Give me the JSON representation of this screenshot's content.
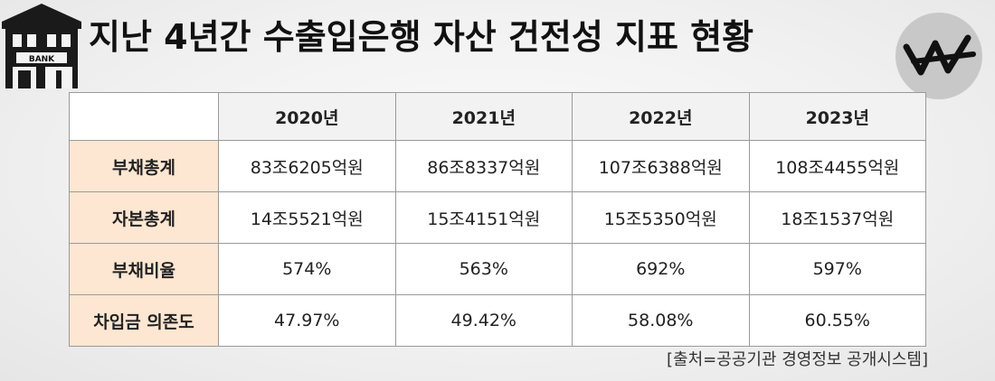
{
  "title": "지난 4년간 수출입은행 자산 건전성 지표 현황",
  "bank_icon": {
    "name": "bank-building-icon",
    "sign_text": "BANK"
  },
  "logo": {
    "name": "w-logo-icon",
    "color": "#111111",
    "circle_color": "#c8c8c8"
  },
  "table": {
    "columns": [
      "",
      "2020년",
      "2021년",
      "2022년",
      "2023년"
    ],
    "rows": [
      {
        "label": "부채총계",
        "values": [
          "83조6205억원",
          "86조8337억원",
          "107조6388억원",
          "108조4455억원"
        ]
      },
      {
        "label": "자본총계",
        "values": [
          "14조5521억원",
          "15조4151억원",
          "15조5350억원",
          "18조1537억원"
        ]
      },
      {
        "label": "부채비율",
        "values": [
          "574%",
          "563%",
          "692%",
          "597%"
        ]
      },
      {
        "label": "차입금 의존도",
        "values": [
          "47.97%",
          "49.42%",
          "58.08%",
          "60.55%"
        ]
      }
    ]
  },
  "source": "[출처=공공기관 경영정보 공개시스템]",
  "colors": {
    "row_header_bg": "#fde7d2",
    "column_header_bg": "#f2f2f2",
    "border": "#9a9a9a"
  }
}
